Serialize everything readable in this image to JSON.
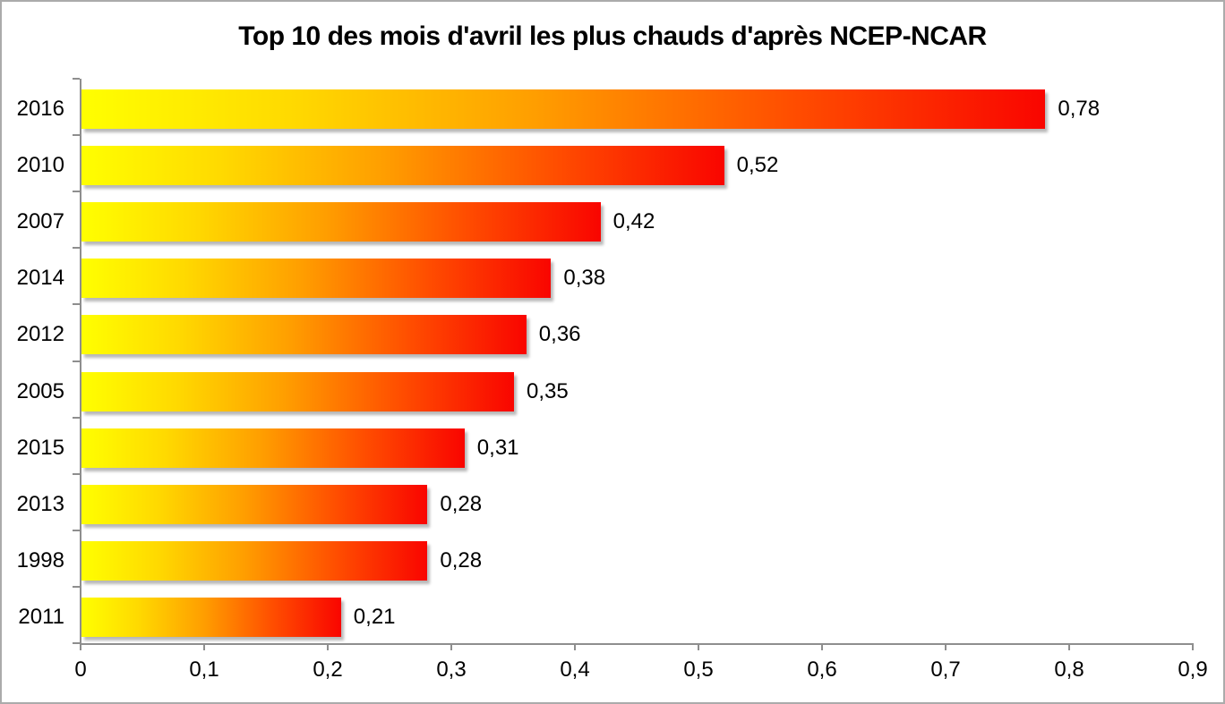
{
  "window": {
    "background_color": "#ffffff",
    "border_color": "#ababab"
  },
  "chart_data": {
    "type": "bar",
    "orientation": "horizontal",
    "title": "Top 10 des mois d'avril les plus chauds d'après NCEP-NCAR",
    "categories": [
      "2016",
      "2010",
      "2007",
      "2014",
      "2012",
      "2005",
      "2015",
      "2013",
      "1998",
      "2011"
    ],
    "values": [
      0.78,
      0.52,
      0.42,
      0.38,
      0.36,
      0.35,
      0.31,
      0.28,
      0.28,
      0.21
    ],
    "value_labels": [
      "0,78",
      "0,52",
      "0,42",
      "0,38",
      "0,36",
      "0,35",
      "0,31",
      "0,28",
      "0,28",
      "0,21"
    ],
    "x_tick_labels": [
      "0",
      "0,1",
      "0,2",
      "0,3",
      "0,4",
      "0,5",
      "0,6",
      "0,7",
      "0,8",
      "0,9"
    ],
    "x_tick_values": [
      0,
      0.1,
      0.2,
      0.3,
      0.4,
      0.5,
      0.6,
      0.7,
      0.8,
      0.9
    ],
    "xlim": [
      0,
      0.9
    ],
    "xlabel": "",
    "ylabel": "",
    "grid": false,
    "legend": null,
    "bar_gradient": {
      "colors": [
        "#ffff00",
        "#ffd900",
        "#ff9e00",
        "#ff4d00",
        "#f90500"
      ],
      "stops": [
        0,
        22,
        47,
        74,
        100
      ],
      "direction": "left-to-right"
    },
    "axis_color": "#8e8e8e",
    "text_color": "#000000"
  }
}
